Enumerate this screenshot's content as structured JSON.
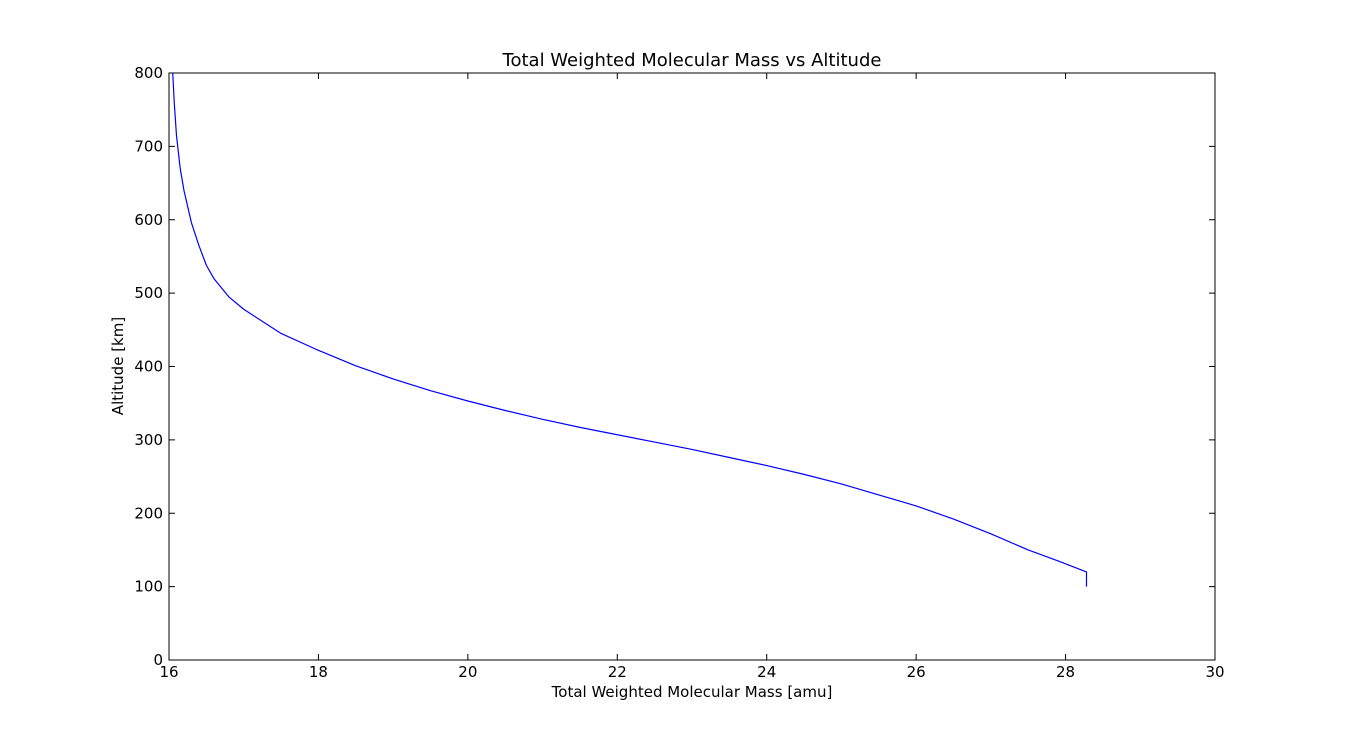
{
  "chart_data": {
    "type": "line",
    "title": "Total Weighted Molecular Mass vs Altitude",
    "xlabel": "Total Weighted Molecular Mass [amu]",
    "ylabel": "Altitude [km]",
    "xlim": [
      16,
      30
    ],
    "ylim": [
      0,
      800
    ],
    "xticks": [
      "16",
      "18",
      "20",
      "22",
      "24",
      "26",
      "28",
      "30"
    ],
    "yticks": [
      "0",
      "100",
      "200",
      "300",
      "400",
      "500",
      "600",
      "700",
      "800"
    ],
    "grid": false,
    "legend": "none",
    "series": [
      {
        "color": "#0000ff",
        "points": [
          {
            "x": 28.28,
            "y": 100
          },
          {
            "x": 28.28,
            "y": 120
          },
          {
            "x": 27.9,
            "y": 135
          },
          {
            "x": 27.5,
            "y": 150
          },
          {
            "x": 27.0,
            "y": 172
          },
          {
            "x": 26.5,
            "y": 192
          },
          {
            "x": 26.0,
            "y": 210
          },
          {
            "x": 25.5,
            "y": 225
          },
          {
            "x": 25.0,
            "y": 240
          },
          {
            "x": 24.5,
            "y": 253
          },
          {
            "x": 24.0,
            "y": 265
          },
          {
            "x": 23.5,
            "y": 276
          },
          {
            "x": 23.0,
            "y": 287
          },
          {
            "x": 22.5,
            "y": 297
          },
          {
            "x": 22.0,
            "y": 307
          },
          {
            "x": 21.5,
            "y": 317
          },
          {
            "x": 21.0,
            "y": 328
          },
          {
            "x": 20.5,
            "y": 340
          },
          {
            "x": 20.0,
            "y": 353
          },
          {
            "x": 19.5,
            "y": 367
          },
          {
            "x": 19.0,
            "y": 383
          },
          {
            "x": 18.5,
            "y": 401
          },
          {
            "x": 18.0,
            "y": 422
          },
          {
            "x": 17.5,
            "y": 445
          },
          {
            "x": 17.0,
            "y": 478
          },
          {
            "x": 16.8,
            "y": 495
          },
          {
            "x": 16.6,
            "y": 520
          },
          {
            "x": 16.5,
            "y": 538
          },
          {
            "x": 16.4,
            "y": 565
          },
          {
            "x": 16.3,
            "y": 596
          },
          {
            "x": 16.2,
            "y": 640
          },
          {
            "x": 16.15,
            "y": 670
          },
          {
            "x": 16.1,
            "y": 715
          },
          {
            "x": 16.07,
            "y": 760
          },
          {
            "x": 16.05,
            "y": 800
          }
        ]
      }
    ]
  }
}
